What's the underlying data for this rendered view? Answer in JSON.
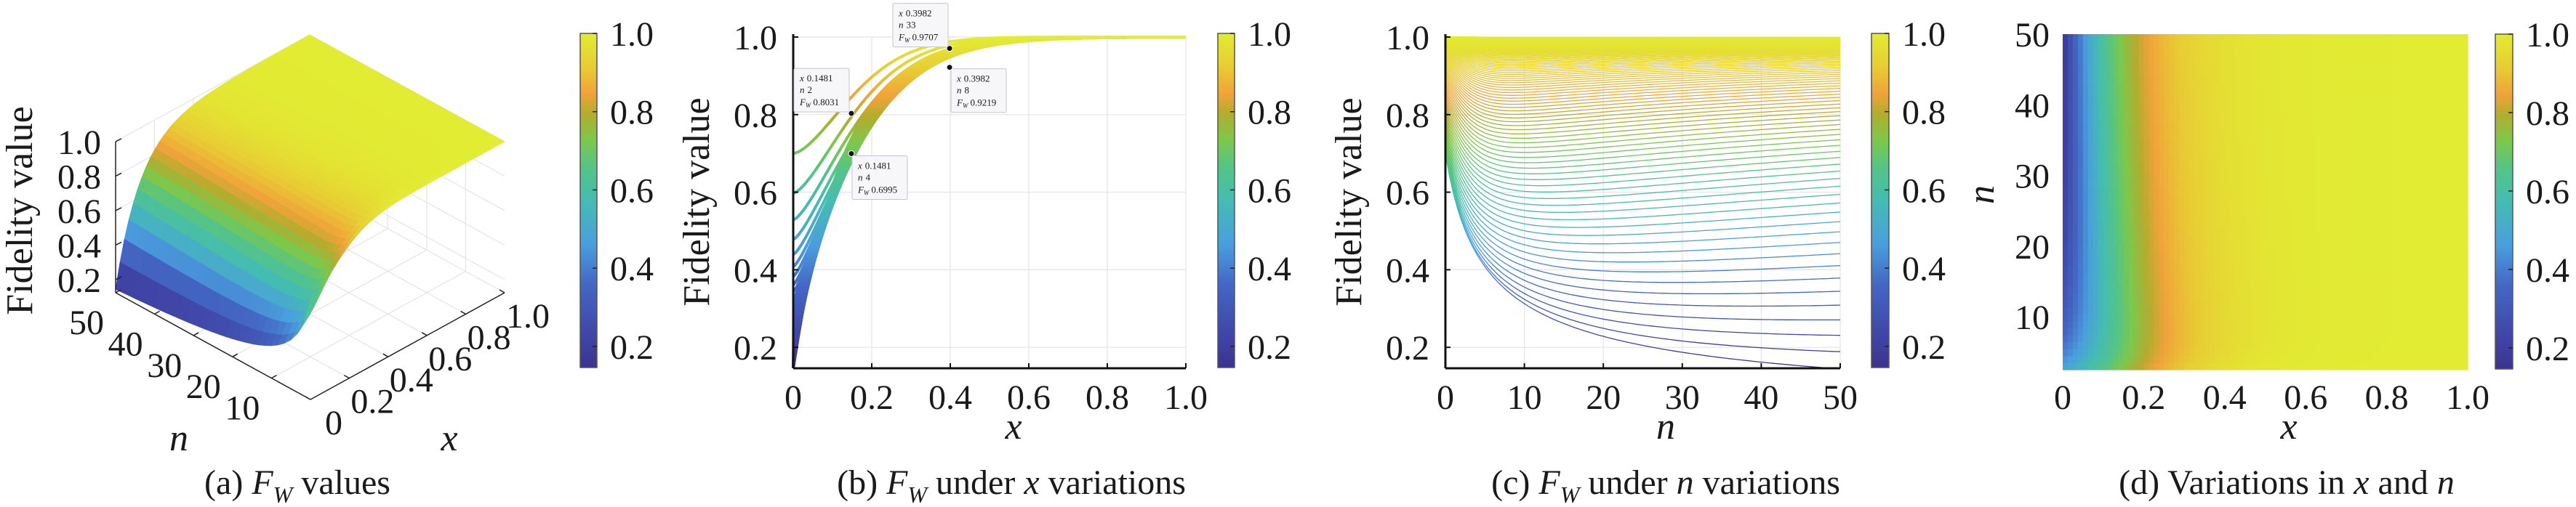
{
  "colormap": {
    "range": [
      0.146,
      1.0
    ],
    "stops": [
      {
        "value": 0.146,
        "color": "#3b348f"
      },
      {
        "value": 0.231,
        "color": "#4046a8"
      },
      {
        "value": 0.36,
        "color": "#4468c4"
      },
      {
        "value": 0.462,
        "color": "#4a9ede"
      },
      {
        "value": 0.573,
        "color": "#45bcb2"
      },
      {
        "value": 0.658,
        "color": "#55c486"
      },
      {
        "value": 0.727,
        "color": "#7cc84c"
      },
      {
        "value": 0.795,
        "color": "#b4ac2e"
      },
      {
        "value": 0.846,
        "color": "#f0a33a"
      },
      {
        "value": 0.915,
        "color": "#e8cc34"
      },
      {
        "value": 1.0,
        "color": "#e2ec33"
      }
    ]
  },
  "chart_data": [
    {
      "type": "surface",
      "caption": [
        {
          "t": "(a) "
        },
        {
          "t": "F",
          "style": "italic"
        },
        {
          "t": "W",
          "style": "sub"
        },
        {
          "t": " values"
        }
      ],
      "xlabel": "x",
      "ylabel": "n",
      "zlabel": "Fidelity value",
      "xlim": [
        0,
        1
      ],
      "ylim": [
        0,
        50
      ],
      "zlim": [
        0.124,
        1.0
      ],
      "xticks": [
        "0",
        "0.2",
        "0.4",
        "0.6",
        "0.8",
        "1.0"
      ],
      "yticks": [
        "10",
        "20",
        "30",
        "40",
        "50"
      ],
      "zticks": [
        "0.2",
        "0.4",
        "0.6",
        "0.8",
        "1.0"
      ],
      "colorbar_ticks": [
        "0.2",
        "0.4",
        "0.6",
        "0.8",
        "1.0"
      ],
      "grid": true
    },
    {
      "type": "line",
      "caption": [
        {
          "t": "(b) "
        },
        {
          "t": "F",
          "style": "italic"
        },
        {
          "t": "W",
          "style": "sub"
        },
        {
          "t": " under "
        },
        {
          "t": "x",
          "style": "italic"
        },
        {
          "t": " variations"
        }
      ],
      "xlabel": "x",
      "ylabel": "Fidelity value",
      "xlim": [
        0,
        1
      ],
      "ylim": [
        0.146,
        1.0
      ],
      "series_parameter": "n",
      "series_range": [
        0,
        50
      ],
      "xticks": [
        "0",
        "0.2",
        "0.4",
        "0.6",
        "0.8",
        "1.0"
      ],
      "yticks": [
        "0.2",
        "0.4",
        "0.6",
        "0.8",
        "1.0"
      ],
      "colorbar_ticks": [
        "0.2",
        "0.4",
        "0.6",
        "0.8",
        "1.0"
      ],
      "grid": true,
      "tip_labels": {
        "x": "x",
        "n": "n",
        "F": "F",
        "F_sub": "W"
      },
      "data_tips": [
        {
          "x": "0.1481",
          "n": "2",
          "F": "0.8031"
        },
        {
          "x": "0.1481",
          "n": "4",
          "F": "0.6995"
        },
        {
          "x": "0.3982",
          "n": "33",
          "F": "0.9707"
        },
        {
          "x": "0.3982",
          "n": "8",
          "F": "0.9219"
        }
      ]
    },
    {
      "type": "line",
      "caption": [
        {
          "t": "(c) "
        },
        {
          "t": "F",
          "style": "italic"
        },
        {
          "t": "W",
          "style": "sub"
        },
        {
          "t": " under "
        },
        {
          "t": "n",
          "style": "italic"
        },
        {
          "t": " variations"
        }
      ],
      "xlabel": "n",
      "ylabel": "Fidelity value",
      "xlim": [
        0,
        50
      ],
      "ylim": [
        0.146,
        1.0
      ],
      "series_parameter": "x",
      "series_range": [
        0,
        1
      ],
      "xticks": [
        "0",
        "10",
        "20",
        "30",
        "40",
        "50"
      ],
      "yticks": [
        "0.2",
        "0.4",
        "0.6",
        "0.8",
        "1.0"
      ],
      "colorbar_ticks": [
        "0.2",
        "0.4",
        "0.6",
        "0.8",
        "1.0"
      ],
      "grid": true
    },
    {
      "type": "heatmap",
      "caption": [
        {
          "t": "(d) Variations in "
        },
        {
          "t": "x",
          "style": "italic"
        },
        {
          "t": " and "
        },
        {
          "t": "n",
          "style": "italic"
        }
      ],
      "xlabel": "x",
      "ylabel": "n",
      "xlim": [
        0,
        1
      ],
      "ylim": [
        2.5,
        50
      ],
      "xticks": [
        "0",
        "0.2",
        "0.4",
        "0.6",
        "0.8",
        "1.0"
      ],
      "yticks": [
        "10",
        "20",
        "30",
        "40",
        "50"
      ],
      "colorbar_ticks": [
        "0.2",
        "0.4",
        "0.6",
        "0.8",
        "1.0"
      ],
      "grid": false
    }
  ]
}
